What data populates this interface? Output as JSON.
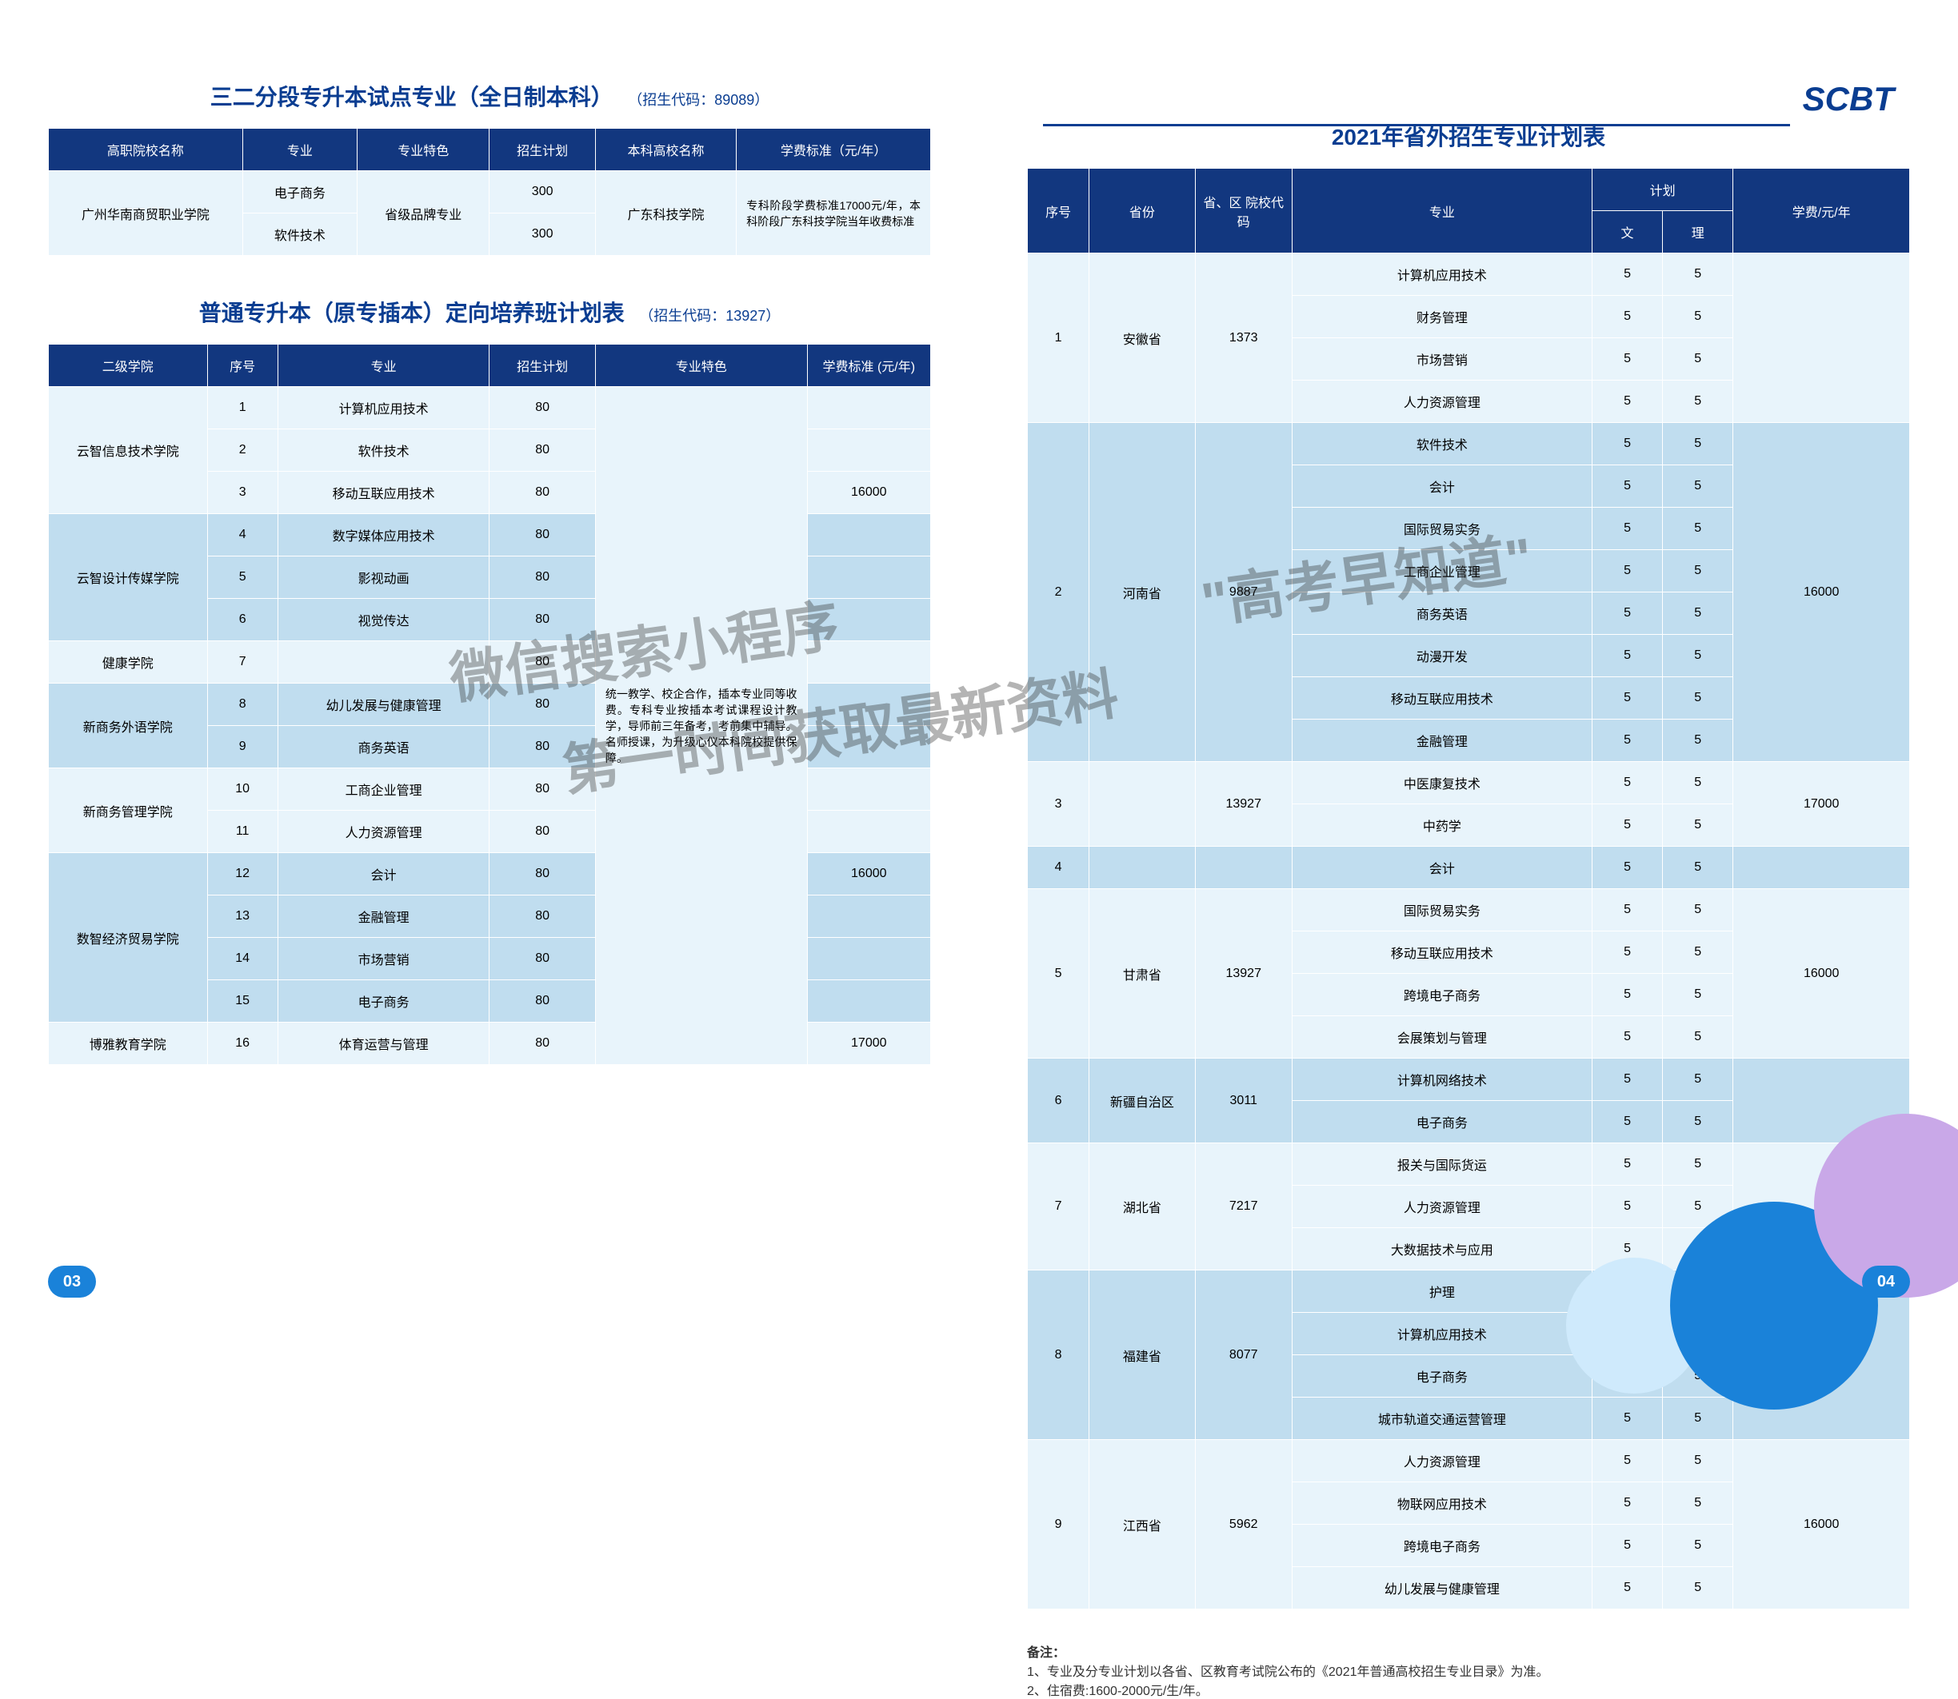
{
  "brand": "SCBT",
  "pageLeft": "03",
  "pageRight": "04",
  "watermark1": "微信搜索小程序",
  "watermark2": "第一时间获取最新资料",
  "watermark3": "\"高考早知道\"",
  "section1": {
    "title": "三二分段专升本试点专业（全日制本科）",
    "code": "（招生代码：89089）",
    "headers": [
      "高职院校名称",
      "专业",
      "专业特色",
      "招生计划",
      "本科高校名称",
      "学费标准（元/年）"
    ],
    "school": "广州华南商贸职业学院",
    "majors": [
      "电子商务",
      "软件技术"
    ],
    "feature": "省级品牌专业",
    "plans": [
      "300",
      "300"
    ],
    "targetSchool": "广东科技学院",
    "feeNote": "专科阶段学费标准17000元/年，本科阶段广东科技学院当年收费标准"
  },
  "section2": {
    "title": "普通专升本（原专插本）定向培养班计划表",
    "code": "（招生代码：13927）",
    "headers": [
      "二级学院",
      "序号",
      "专业",
      "招生计划",
      "专业特色",
      "学费标准 (元/年)"
    ],
    "rows": [
      {
        "college": "云智信息技术学院",
        "idx": "1",
        "major": "计算机应用技术",
        "plan": "80",
        "fee": ""
      },
      {
        "college": "",
        "idx": "2",
        "major": "软件技术",
        "plan": "80",
        "fee": ""
      },
      {
        "college": "",
        "idx": "3",
        "major": "移动互联应用技术",
        "plan": "80",
        "fee": "16000"
      },
      {
        "college": "云智设计传媒学院",
        "idx": "4",
        "major": "数字媒体应用技术",
        "plan": "80",
        "fee": ""
      },
      {
        "college": "",
        "idx": "5",
        "major": "影视动画",
        "plan": "80",
        "fee": ""
      },
      {
        "college": "",
        "idx": "6",
        "major": "视觉传达",
        "plan": "80",
        "fee": ""
      },
      {
        "college": "健康学院",
        "idx": "7",
        "major": "",
        "plan": "80",
        "fee": ""
      },
      {
        "college": "新商务外语学院",
        "idx": "8",
        "major": "幼儿发展与健康管理",
        "plan": "80",
        "fee": ""
      },
      {
        "college": "",
        "idx": "9",
        "major": "商务英语",
        "plan": "80",
        "fee": ""
      },
      {
        "college": "新商务管理学院",
        "idx": "10",
        "major": "工商企业管理",
        "plan": "80",
        "fee": ""
      },
      {
        "college": "",
        "idx": "11",
        "major": "人力资源管理",
        "plan": "80",
        "fee": ""
      },
      {
        "college": "数智经济贸易学院",
        "idx": "12",
        "major": "会计",
        "plan": "80",
        "fee": "16000"
      },
      {
        "college": "",
        "idx": "13",
        "major": "金融管理",
        "plan": "80",
        "fee": ""
      },
      {
        "college": "",
        "idx": "14",
        "major": "市场营销",
        "plan": "80",
        "fee": ""
      },
      {
        "college": "",
        "idx": "15",
        "major": "电子商务",
        "plan": "80",
        "fee": ""
      },
      {
        "college": "博雅教育学院",
        "idx": "16",
        "major": "体育运营与管理",
        "plan": "80",
        "fee": "17000"
      }
    ],
    "featureText": "统一教学、校企合作，插本专业同等收费。专科专业按插本考试课程设计教学，导师前三年备考，考前集中辅导。名师授课，为升级心仪本科院校提供保障。",
    "colleges": {
      "c1": {
        "name": "云智信息技术学院",
        "rowspan": 3
      },
      "c2": {
        "name": "云智设计传媒学院",
        "rowspan": 3
      },
      "c3": {
        "name": "健康学院",
        "rowspan": 1
      },
      "c4": {
        "name": "新商务外语学院",
        "rowspan": 2
      },
      "c5": {
        "name": "新商务管理学院",
        "rowspan": 2
      },
      "c6": {
        "name": "数智经济贸易学院",
        "rowspan": 4
      },
      "c7": {
        "name": "博雅教育学院",
        "rowspan": 1
      }
    }
  },
  "section3": {
    "title": "2021年省外招生专业计划表",
    "headers": {
      "idx": "序号",
      "prov": "省份",
      "code": "省、区 院校代码",
      "major": "专业",
      "plan": "计划",
      "wen": "文",
      "li": "理",
      "fee": "学费/元/年"
    },
    "groups": [
      {
        "idx": "1",
        "prov": "安徽省",
        "code": "1373",
        "majors": [
          [
            "计算机应用技术",
            "5",
            "5"
          ],
          [
            "财务管理",
            "5",
            "5"
          ],
          [
            "市场营销",
            "5",
            "5"
          ],
          [
            "人力资源管理",
            "5",
            "5"
          ]
        ],
        "fee": ""
      },
      {
        "idx": "2",
        "prov": "河南省",
        "code": "9887",
        "majors": [
          [
            "软件技术",
            "5",
            "5"
          ],
          [
            "会计",
            "5",
            "5"
          ],
          [
            "国际贸易实务",
            "5",
            "5"
          ],
          [
            "工商企业管理",
            "5",
            "5"
          ],
          [
            "商务英语",
            "5",
            "5"
          ],
          [
            "动漫开发",
            "5",
            "5"
          ],
          [
            "移动互联应用技术",
            "5",
            "5"
          ],
          [
            "金融管理",
            "5",
            "5"
          ]
        ],
        "fee": "16000"
      },
      {
        "idx": "3",
        "prov": "",
        "code": "13927",
        "majors": [
          [
            "中医康复技术",
            "5",
            "5"
          ],
          [
            "中药学",
            "5",
            "5"
          ]
        ],
        "fee": "17000"
      },
      {
        "idx": "4",
        "prov": "",
        "code": "",
        "majors": [
          [
            "会计",
            "5",
            "5"
          ]
        ],
        "fee": ""
      },
      {
        "idx": "5",
        "prov": "甘肃省",
        "code": "13927",
        "majors": [
          [
            "国际贸易实务",
            "5",
            "5"
          ],
          [
            "移动互联应用技术",
            "5",
            "5"
          ],
          [
            "跨境电子商务",
            "5",
            "5"
          ],
          [
            "会展策划与管理",
            "5",
            "5"
          ]
        ],
        "fee": "16000"
      },
      {
        "idx": "6",
        "prov": "新疆自治区",
        "code": "3011",
        "majors": [
          [
            "计算机网络技术",
            "5",
            "5"
          ],
          [
            "电子商务",
            "5",
            "5"
          ]
        ],
        "fee": ""
      },
      {
        "idx": "7",
        "prov": "湖北省",
        "code": "7217",
        "majors": [
          [
            "报关与国际货运",
            "5",
            "5"
          ],
          [
            "人力资源管理",
            "5",
            "5"
          ],
          [
            "大数据技术与应用",
            "5",
            "5"
          ]
        ],
        "fee": ""
      },
      {
        "idx": "8",
        "prov": "福建省",
        "code": "8077",
        "majors": [
          [
            "护理",
            "5",
            "5"
          ],
          [
            "计算机应用技术",
            "5",
            "5"
          ],
          [
            "电子商务",
            "5",
            "5"
          ],
          [
            "城市轨道交通运营管理",
            "5",
            "5"
          ]
        ],
        "fee": "17000"
      },
      {
        "idx": "9",
        "prov": "江西省",
        "code": "5962",
        "majors": [
          [
            "人力资源管理",
            "5",
            "5"
          ],
          [
            "物联网应用技术",
            "5",
            "5"
          ],
          [
            "跨境电子商务",
            "5",
            "5"
          ],
          [
            "幼儿发展与健康管理",
            "5",
            "5"
          ]
        ],
        "fee": "16000"
      }
    ],
    "notes": {
      "label": "备注：",
      "n1": "1、专业及分专业计划以各省、区教育考试院公布的《2021年普通高校招生专业目录》为准。",
      "n2": "2、住宿费:1600-2000元/生/年。"
    }
  }
}
